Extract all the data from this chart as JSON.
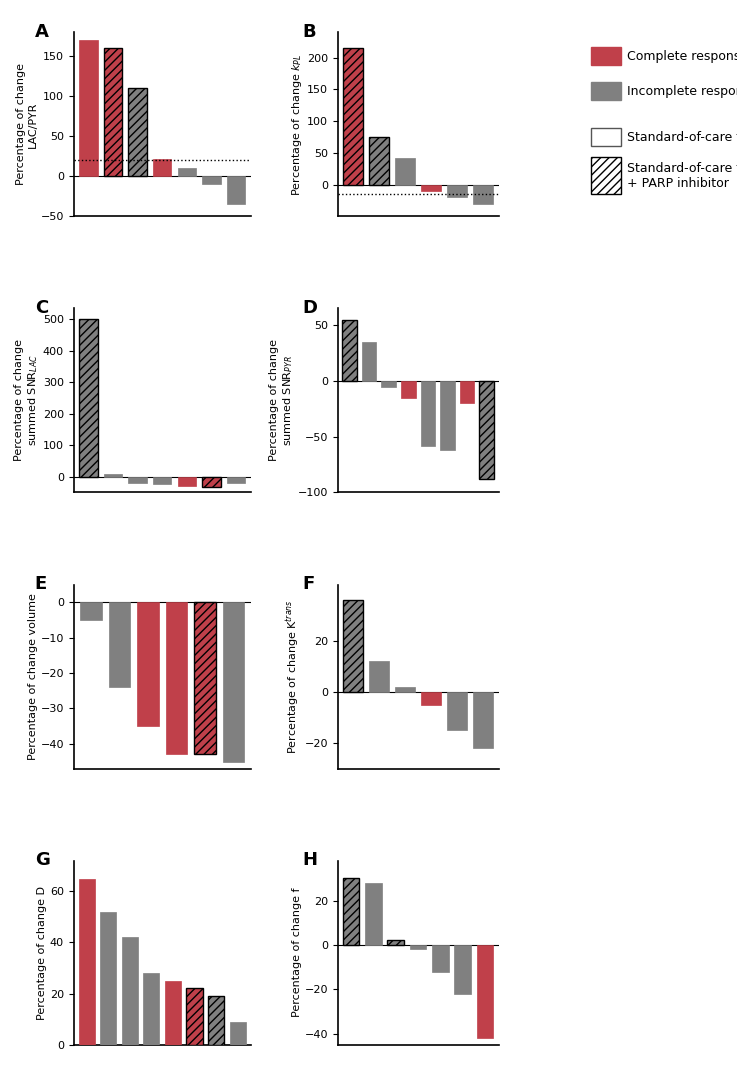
{
  "panel_A": {
    "title": "A",
    "ylabel": "Percentage of change\nLAC/PYR",
    "ylim": [
      -50,
      180
    ],
    "yticks": [
      -50,
      0,
      50,
      100,
      150
    ],
    "threshold": 20,
    "bars": [
      {
        "value": 170,
        "color": "complete",
        "hatch": false
      },
      {
        "value": 160,
        "color": "complete",
        "hatch": true
      },
      {
        "value": 110,
        "color": "incomplete",
        "hatch": true
      },
      {
        "value": 22,
        "color": "complete",
        "hatch": false
      },
      {
        "value": 11,
        "color": "incomplete",
        "hatch": false
      },
      {
        "value": -10,
        "color": "incomplete",
        "hatch": false
      },
      {
        "value": -35,
        "color": "incomplete",
        "hatch": false
      }
    ]
  },
  "panel_B": {
    "title": "B",
    "ylabel": "Percentage of change $k_{PL}$",
    "ylim": [
      -50,
      240
    ],
    "yticks": [
      0,
      50,
      100,
      150,
      200
    ],
    "threshold": -15,
    "bars": [
      {
        "value": 215,
        "color": "complete",
        "hatch": true
      },
      {
        "value": 75,
        "color": "incomplete",
        "hatch": true
      },
      {
        "value": 42,
        "color": "incomplete",
        "hatch": false
      },
      {
        "value": -10,
        "color": "complete",
        "hatch": false
      },
      {
        "value": -20,
        "color": "incomplete",
        "hatch": false
      },
      {
        "value": -30,
        "color": "incomplete",
        "hatch": false
      }
    ]
  },
  "panel_C": {
    "title": "C",
    "ylabel": "Percentage of change\nsummed SNR$_{LAC}$",
    "ylim": [
      -50,
      535
    ],
    "yticks": [
      0,
      100,
      200,
      300,
      400,
      500
    ],
    "bars": [
      {
        "value": 500,
        "color": "incomplete",
        "hatch": true
      },
      {
        "value": 8,
        "color": "incomplete",
        "hatch": false
      },
      {
        "value": -20,
        "color": "incomplete",
        "hatch": false
      },
      {
        "value": -22,
        "color": "incomplete",
        "hatch": false
      },
      {
        "value": -28,
        "color": "complete",
        "hatch": false
      },
      {
        "value": -33,
        "color": "complete",
        "hatch": true
      },
      {
        "value": -20,
        "color": "incomplete",
        "hatch": false
      }
    ]
  },
  "panel_D": {
    "title": "D",
    "ylabel": "Percentage of change\nsummed SNR$_{PYR}$",
    "ylim": [
      -100,
      65
    ],
    "yticks": [
      -100,
      -50,
      0,
      50
    ],
    "bars": [
      {
        "value": 55,
        "color": "incomplete",
        "hatch": true
      },
      {
        "value": 35,
        "color": "incomplete",
        "hatch": false
      },
      {
        "value": -5,
        "color": "incomplete",
        "hatch": false
      },
      {
        "value": -15,
        "color": "complete",
        "hatch": false
      },
      {
        "value": -58,
        "color": "incomplete",
        "hatch": false
      },
      {
        "value": -62,
        "color": "incomplete",
        "hatch": false
      },
      {
        "value": -20,
        "color": "complete",
        "hatch": false
      },
      {
        "value": -88,
        "color": "incomplete",
        "hatch": true
      }
    ]
  },
  "panel_E": {
    "title": "E",
    "ylabel": "Percentage of change volume",
    "ylim": [
      -47,
      5
    ],
    "yticks": [
      -40,
      -30,
      -20,
      -10,
      0
    ],
    "bars": [
      {
        "value": -5,
        "color": "incomplete",
        "hatch": false
      },
      {
        "value": -24,
        "color": "incomplete",
        "hatch": false
      },
      {
        "value": -35,
        "color": "complete",
        "hatch": false
      },
      {
        "value": -43,
        "color": "complete",
        "hatch": false
      },
      {
        "value": -43,
        "color": "complete",
        "hatch": true
      },
      {
        "value": -45,
        "color": "incomplete",
        "hatch": false
      }
    ]
  },
  "panel_F": {
    "title": "F",
    "ylabel": "Percentage of change K$^{trans}$",
    "ylim": [
      -30,
      42
    ],
    "yticks": [
      -20,
      0,
      20
    ],
    "bars": [
      {
        "value": 36,
        "color": "incomplete",
        "hatch": true
      },
      {
        "value": 12,
        "color": "incomplete",
        "hatch": false
      },
      {
        "value": 2,
        "color": "incomplete",
        "hatch": false
      },
      {
        "value": -5,
        "color": "complete",
        "hatch": false
      },
      {
        "value": -15,
        "color": "incomplete",
        "hatch": false
      },
      {
        "value": -22,
        "color": "incomplete",
        "hatch": false
      }
    ]
  },
  "panel_G": {
    "title": "G",
    "ylabel": "Percentage of change D",
    "ylim": [
      0,
      72
    ],
    "yticks": [
      0,
      20,
      40,
      60
    ],
    "bars": [
      {
        "value": 65,
        "color": "complete",
        "hatch": false
      },
      {
        "value": 52,
        "color": "incomplete",
        "hatch": false
      },
      {
        "value": 42,
        "color": "incomplete",
        "hatch": false
      },
      {
        "value": 28,
        "color": "incomplete",
        "hatch": false
      },
      {
        "value": 25,
        "color": "complete",
        "hatch": false
      },
      {
        "value": 22,
        "color": "complete",
        "hatch": true
      },
      {
        "value": 19,
        "color": "incomplete",
        "hatch": true
      },
      {
        "value": 9,
        "color": "incomplete",
        "hatch": false
      }
    ]
  },
  "panel_H": {
    "title": "H",
    "ylabel": "Percentage of change f",
    "ylim": [
      -45,
      38
    ],
    "yticks": [
      -40,
      -20,
      0,
      20
    ],
    "bars": [
      {
        "value": 30,
        "color": "incomplete",
        "hatch": true
      },
      {
        "value": 28,
        "color": "incomplete",
        "hatch": false
      },
      {
        "value": 2,
        "color": "incomplete",
        "hatch": true
      },
      {
        "value": -2,
        "color": "incomplete",
        "hatch": false
      },
      {
        "value": -12,
        "color": "incomplete",
        "hatch": false
      },
      {
        "value": -22,
        "color": "incomplete",
        "hatch": false
      },
      {
        "value": -42,
        "color": "complete",
        "hatch": false
      }
    ]
  },
  "colors": {
    "complete": "#c0404a",
    "incomplete": "#808080"
  },
  "bar_width": 0.75,
  "hatch_pattern": "////"
}
